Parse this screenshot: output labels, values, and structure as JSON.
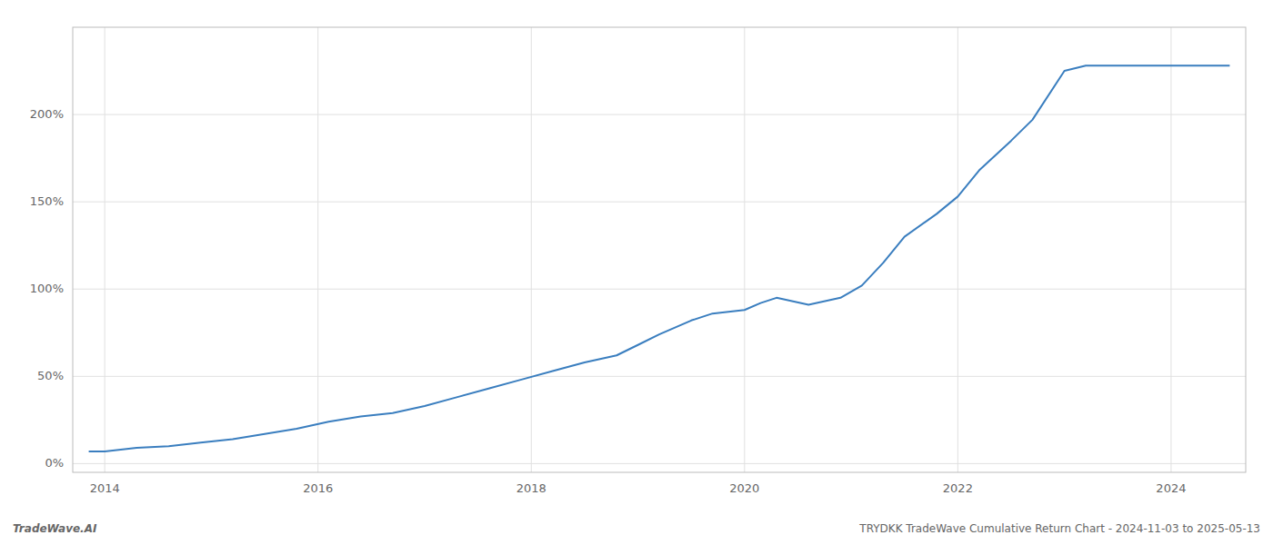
{
  "chart_data": {
    "type": "line",
    "x": [
      2013.85,
      2014.0,
      2014.3,
      2014.6,
      2014.9,
      2015.2,
      2015.5,
      2015.8,
      2016.1,
      2016.4,
      2016.7,
      2017.0,
      2017.3,
      2017.6,
      2017.9,
      2018.2,
      2018.5,
      2018.8,
      2019.0,
      2019.2,
      2019.5,
      2019.7,
      2020.0,
      2020.15,
      2020.3,
      2020.6,
      2020.9,
      2021.1,
      2021.3,
      2021.5,
      2021.8,
      2022.0,
      2022.2,
      2022.5,
      2022.7,
      2023.0,
      2023.2,
      2023.4,
      2023.7,
      2024.0,
      2024.3,
      2024.55
    ],
    "values": [
      7,
      7,
      9,
      10,
      12,
      14,
      17,
      20,
      24,
      27,
      29,
      33,
      38,
      43,
      48,
      53,
      58,
      62,
      68,
      74,
      82,
      86,
      88,
      92,
      95,
      91,
      95,
      102,
      115,
      130,
      143,
      153,
      168,
      185,
      197,
      225,
      228,
      228,
      228,
      228,
      228,
      228
    ],
    "color": "#3a7ebf",
    "xlim": [
      2013.7,
      2024.7
    ],
    "ylim": [
      -5,
      250
    ],
    "xticks": [
      2014,
      2016,
      2018,
      2020,
      2022,
      2024
    ],
    "yticks": [
      {
        "value": 0,
        "label": "0%"
      },
      {
        "value": 50,
        "label": "50%"
      },
      {
        "value": 100,
        "label": "100%"
      },
      {
        "value": 150,
        "label": "150%"
      },
      {
        "value": 200,
        "label": "200%"
      }
    ],
    "grid": true,
    "annotations": [
      "TradeWave.AI",
      "TRYDKK TradeWave Cumulative Return Chart - 2024-11-03 to 2025-05-13"
    ]
  }
}
